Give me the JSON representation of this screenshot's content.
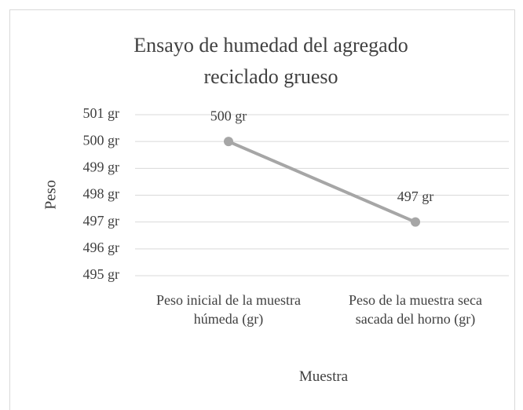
{
  "chart_data": {
    "type": "line",
    "title": "Ensayo de humedad del agregado reciclado grueso",
    "x_label": "Muestra",
    "y_label": "Peso",
    "categories": [
      "Peso inicial de la muestra húmeda (gr)",
      "Peso de la muestra seca sacada del horno (gr)"
    ],
    "series": [
      {
        "name": "Peso",
        "color": "#a6a6a6",
        "values": [
          500,
          497
        ],
        "value_labels": [
          "500 gr",
          "497 gr"
        ]
      }
    ],
    "ylim": [
      495,
      501
    ],
    "yticks": [
      {
        "value": 495,
        "label": "495 gr"
      },
      {
        "value": 496,
        "label": "496 gr"
      },
      {
        "value": 497,
        "label": "497 gr"
      },
      {
        "value": 498,
        "label": "498 gr"
      },
      {
        "value": 499,
        "label": "499 gr"
      },
      {
        "value": 500,
        "label": "500 gr"
      },
      {
        "value": 501,
        "label": "501 gr"
      }
    ],
    "grid": true
  }
}
